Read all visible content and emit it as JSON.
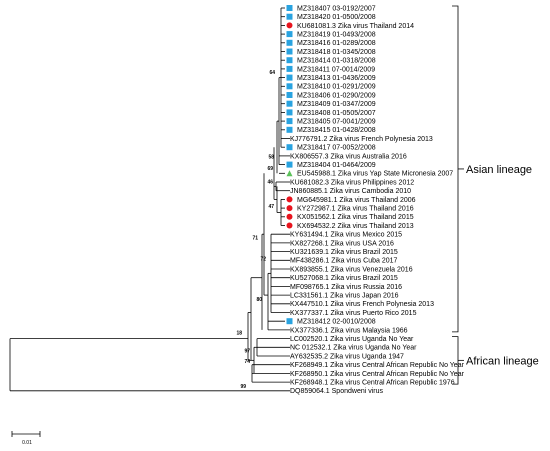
{
  "tree": {
    "taxa": [
      {
        "label": "MZ318407 03-0192/2007",
        "marker": "square"
      },
      {
        "label": "MZ318420 01-0500/2008",
        "marker": "square"
      },
      {
        "label": "KU681081.3 Zika virus Thailand 2014",
        "marker": "circle"
      },
      {
        "label": "MZ318419 01-0493/2008",
        "marker": "square"
      },
      {
        "label": "MZ318416 01-0289/2008",
        "marker": "square"
      },
      {
        "label": "MZ318418 01-0345/2008",
        "marker": "square"
      },
      {
        "label": "MZ318414 01-0318/2008",
        "marker": "square"
      },
      {
        "label": "MZ318411 07-0014/2009",
        "marker": "square"
      },
      {
        "label": "MZ318413 01-0436/2009",
        "marker": "square"
      },
      {
        "label": "MZ318410 01-0291/2009",
        "marker": "square"
      },
      {
        "label": "MZ318406 01-0290/2009",
        "marker": "square"
      },
      {
        "label": "MZ318409 01-0347/2009",
        "marker": "square"
      },
      {
        "label": "MZ318408 01-0505/2007",
        "marker": "square"
      },
      {
        "label": "MZ318405 07-0041/2009",
        "marker": "square"
      },
      {
        "label": "MZ318415 01-0428/2008",
        "marker": "square"
      },
      {
        "label": "KJ776791.2 Zika virus French Polynesia 2013",
        "marker": "none"
      },
      {
        "label": "MZ318417 07-0052/2008",
        "marker": "square"
      },
      {
        "label": "KX806557.3 Zika virus Australia 2016",
        "marker": "none"
      },
      {
        "label": "MZ318404 01-0464/2009",
        "marker": "square"
      },
      {
        "label": "EU545988.1 Zika virus Yap State Micronesia 2007",
        "marker": "triangle"
      },
      {
        "label": "KU681082.3 Zika virus Philippines 2012",
        "marker": "none"
      },
      {
        "label": "JN860885.1 Zika virus Cambodia 2010",
        "marker": "none"
      },
      {
        "label": "MG645981.1 Zika virus Thailand 2006",
        "marker": "circle"
      },
      {
        "label": "KY272987.1 Zika virus Thailand 2016",
        "marker": "circle"
      },
      {
        "label": "KX051562.1 Zika virus Thailand 2015",
        "marker": "circle"
      },
      {
        "label": "KX694532.2 Zika virus Thailand 2013",
        "marker": "circle"
      },
      {
        "label": "KY631494.1 Zika virus Mexico 2015",
        "marker": "none"
      },
      {
        "label": "KX827268.1 Zika virus USA 2016",
        "marker": "none"
      },
      {
        "label": "KU321639.1 Zika virus Brazil 2015",
        "marker": "none"
      },
      {
        "label": "MF438286.1 Zika virus Cuba 2017",
        "marker": "none"
      },
      {
        "label": "KX893855.1 Zika virus Venezuela 2016",
        "marker": "none"
      },
      {
        "label": "KU527068.1 Zika virus Brazil 2015",
        "marker": "none"
      },
      {
        "label": "MF098765.1 Zika virus Russia 2016",
        "marker": "none"
      },
      {
        "label": "LC331561.1 Zika virus Japan 2016",
        "marker": "none"
      },
      {
        "label": "KX447510.1 Zika virus French Polynesia 2013",
        "marker": "none"
      },
      {
        "label": "KX377337.1 Zika virus Puerto Rico 2015",
        "marker": "none"
      },
      {
        "label": "MZ318412 02-0010/2008",
        "marker": "square"
      },
      {
        "label": "KX377336.1 Zika virus Malaysia 1966",
        "marker": "none"
      },
      {
        "label": "LC002520.1 Zika virus Uganda No Year",
        "marker": "none"
      },
      {
        "label": "NC 012532.1 Zika virus Uganda No Year",
        "marker": "none"
      },
      {
        "label": "AY632535.2 Zika virus Uganda 1947",
        "marker": "none"
      },
      {
        "label": "KF268949.1 Zika virus Central African Republic No Year",
        "marker": "none"
      },
      {
        "label": "KF268950.1 Zika virus Central African Republic No Year",
        "marker": "none"
      },
      {
        "label": "KF268948.1 Zika virus Central African Republic 1976",
        "marker": "none"
      },
      {
        "label": "DQ859064.1 Spondweni virus",
        "marker": "none"
      }
    ],
    "bootstrap": [
      "64",
      "58",
      "69",
      "46",
      "47",
      "71",
      "72",
      "80",
      "18",
      "97",
      "74",
      "99"
    ],
    "groups": [
      "Asian lineage",
      "African lineage"
    ],
    "scale_label": "0.01"
  },
  "colors": {
    "square": "#29a3e0",
    "circle": "#e8141e",
    "triangle": "#5cc25a",
    "branch": "#000000"
  }
}
